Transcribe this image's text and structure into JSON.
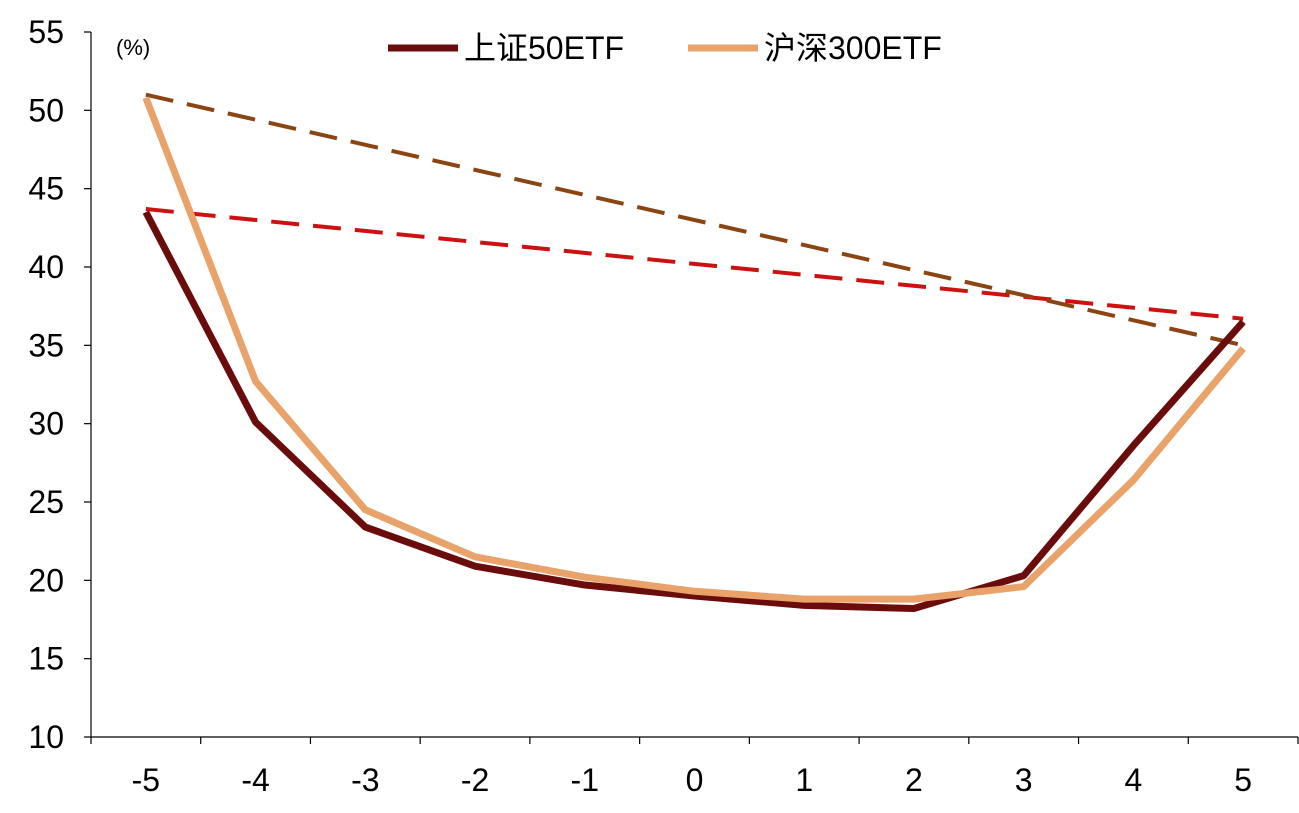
{
  "chart_data": {
    "type": "line",
    "unit_label": "(%)",
    "x": [
      -5,
      -4,
      -3,
      -2,
      -1,
      0,
      1,
      2,
      3,
      4,
      5
    ],
    "ylim": [
      10,
      55
    ],
    "yticks": [
      10,
      15,
      20,
      25,
      30,
      35,
      40,
      45,
      50,
      55
    ],
    "grid": false,
    "legend_position": "top-center",
    "series": [
      {
        "name": "上证50ETF",
        "color": "#6b0c0c",
        "values": [
          43.5,
          30.1,
          23.4,
          20.9,
          19.7,
          19.0,
          18.4,
          18.2,
          20.3,
          28.6,
          36.5
        ]
      },
      {
        "name": "沪深300ETF",
        "color": "#e8a26a",
        "values": [
          50.8,
          32.7,
          24.5,
          21.5,
          20.2,
          19.3,
          18.8,
          18.8,
          19.6,
          26.4,
          34.8
        ]
      }
    ],
    "trend_lines": [
      {
        "color": "#cc1111",
        "style": "dashed",
        "points": [
          [
            -5,
            43.7
          ],
          [
            5,
            36.7
          ]
        ]
      },
      {
        "color": "#8b4513",
        "style": "dashed",
        "points": [
          [
            -5,
            51.0
          ],
          [
            5,
            35.0
          ]
        ]
      }
    ]
  }
}
